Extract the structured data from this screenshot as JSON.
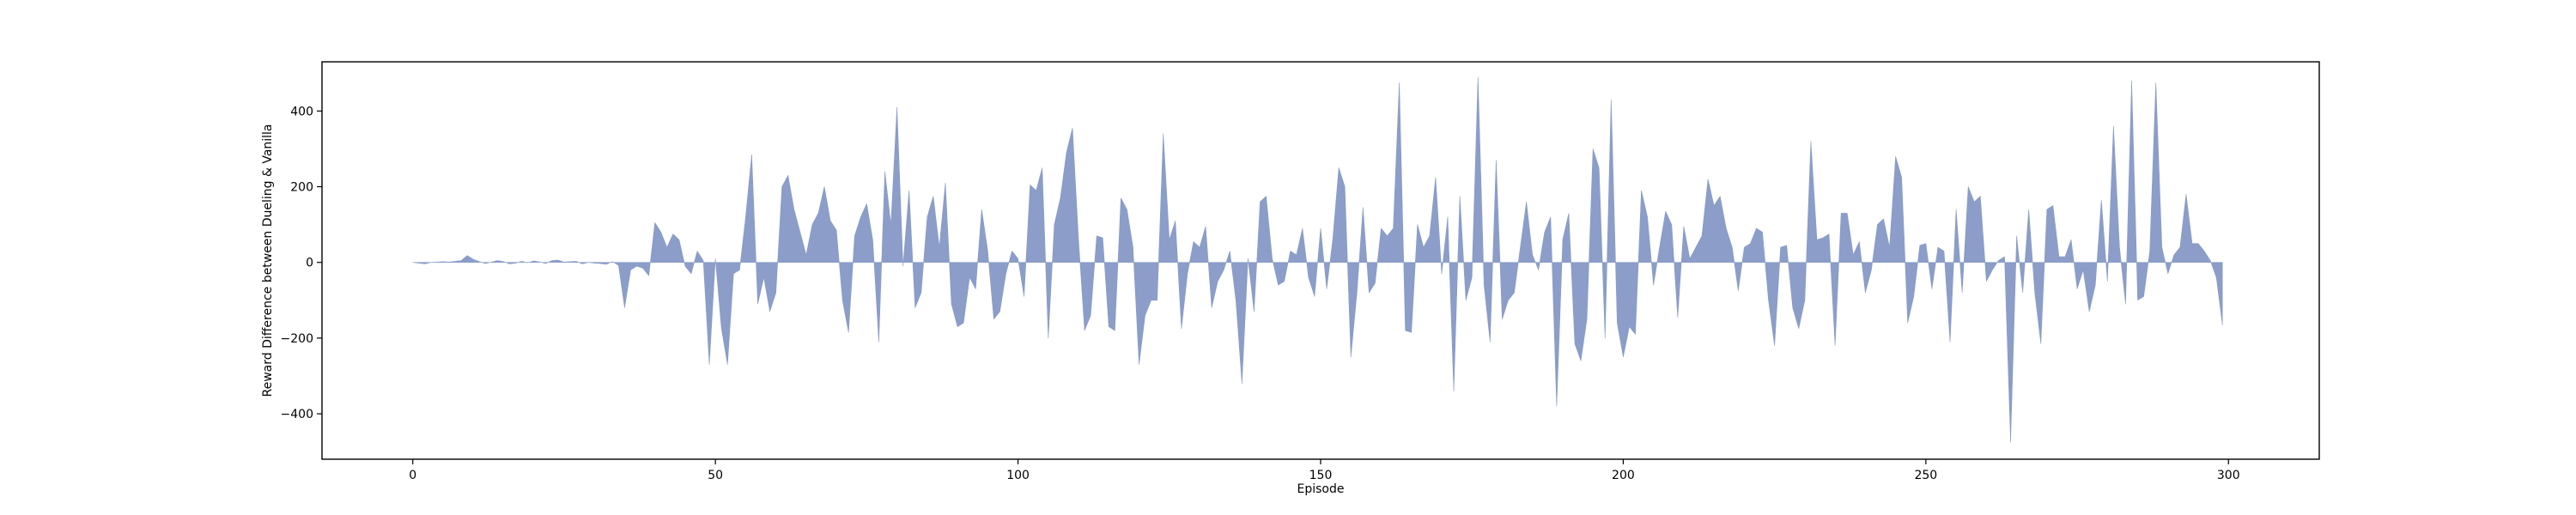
{
  "chart_data": {
    "type": "area",
    "title": "",
    "xlabel": "Episode",
    "ylabel": "Reward Difference between Dueling & Vanilla",
    "xlim": [
      -15,
      315
    ],
    "ylim": [
      -520,
      530
    ],
    "xticks": [
      0,
      50,
      100,
      150,
      200,
      250,
      300
    ],
    "yticks": [
      -400,
      -200,
      0,
      200,
      400
    ],
    "grid": false,
    "legend": "none",
    "fill_color": "#8b9dc8",
    "baseline": 0,
    "x_start": 0,
    "series": [
      {
        "values": [
          0,
          -2,
          -4,
          0,
          1,
          2,
          1,
          3,
          5,
          18,
          8,
          2,
          -3,
          1,
          5,
          2,
          -4,
          -2,
          3,
          -1,
          4,
          1,
          -3,
          5,
          6,
          1,
          2,
          3,
          -4,
          0,
          -2,
          -3,
          -5,
          2,
          -8,
          -120,
          -20,
          -10,
          -15,
          -35,
          105,
          80,
          40,
          75,
          60,
          -10,
          -30,
          30,
          5,
          -270,
          10,
          -175,
          -270,
          -30,
          -20,
          120,
          285,
          -110,
          -40,
          -130,
          -80,
          200,
          230,
          140,
          80,
          20,
          100,
          130,
          200,
          110,
          85,
          -100,
          -185,
          70,
          120,
          155,
          60,
          -210,
          240,
          100,
          410,
          -10,
          190,
          -120,
          -80,
          120,
          175,
          40,
          210,
          -110,
          -170,
          -160,
          -40,
          -70,
          140,
          30,
          -150,
          -130,
          -30,
          30,
          10,
          -90,
          205,
          190,
          250,
          -200,
          100,
          170,
          290,
          355,
          60,
          -180,
          -140,
          70,
          65,
          -170,
          -180,
          170,
          140,
          40,
          -270,
          -140,
          -100,
          -100,
          340,
          60,
          110,
          -175,
          -30,
          55,
          40,
          95,
          -120,
          -50,
          -20,
          30,
          -100,
          -320,
          10,
          -130,
          160,
          175,
          10,
          -60,
          -50,
          30,
          20,
          90,
          -40,
          -90,
          90,
          -70,
          60,
          250,
          200,
          -250,
          -80,
          145,
          -80,
          -55,
          90,
          70,
          90,
          475,
          -180,
          -185,
          100,
          40,
          70,
          225,
          -30,
          120,
          -340,
          175,
          -100,
          -40,
          490,
          -60,
          -210,
          270,
          -150,
          -100,
          -80,
          40,
          160,
          20,
          -20,
          80,
          120,
          -380,
          60,
          130,
          -215,
          -260,
          -150,
          300,
          250,
          -200,
          430,
          -160,
          -250,
          -170,
          -190,
          190,
          120,
          -60,
          40,
          135,
          100,
          -145,
          95,
          10,
          40,
          70,
          220,
          150,
          175,
          90,
          40,
          -75,
          40,
          50,
          90,
          80,
          -100,
          -220,
          40,
          45,
          -120,
          -175,
          -100,
          320,
          60,
          65,
          75,
          -220,
          130,
          130,
          20,
          55,
          -80,
          -20,
          100,
          115,
          40,
          280,
          225,
          -160,
          -90,
          45,
          50,
          -70,
          40,
          30,
          -210,
          140,
          -80,
          200,
          160,
          175,
          -50,
          -20,
          5,
          15,
          -475,
          70,
          -80,
          140,
          -80,
          -215,
          140,
          150,
          15,
          15,
          60,
          -70,
          -20,
          -130,
          -60,
          165,
          -50,
          360,
          40,
          -110,
          480,
          -100,
          -90,
          30,
          475,
          40,
          -30,
          20,
          40,
          180,
          50,
          50,
          30,
          5,
          -40,
          -165
        ]
      }
    ]
  }
}
